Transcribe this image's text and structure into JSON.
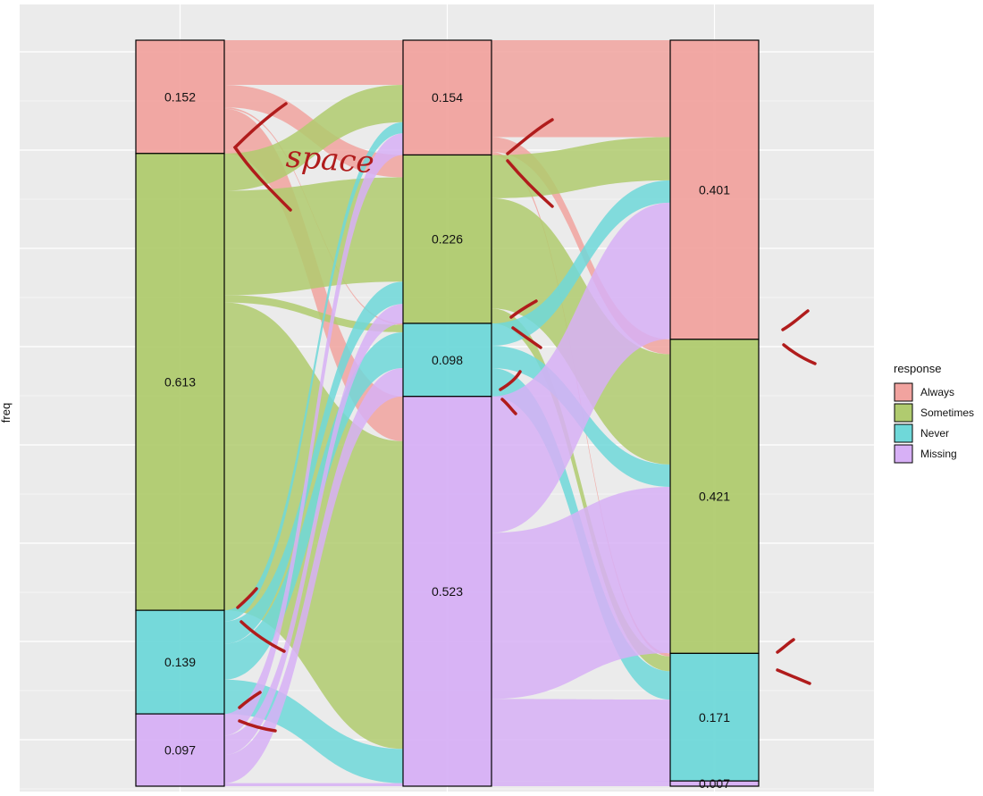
{
  "chart_data": {
    "type": "alluvial",
    "ylabel": "freq",
    "legend": {
      "title": "response",
      "placement": "right",
      "entries": [
        {
          "name": "Always",
          "color": "#F1A39F"
        },
        {
          "name": "Sometimes",
          "color": "#B0CB6F"
        },
        {
          "name": "Never",
          "color": "#6FD8D9"
        },
        {
          "name": "Missing",
          "color": "#D7B0F6"
        }
      ]
    },
    "category_order": [
      "Always",
      "Sometimes",
      "Never",
      "Missing"
    ],
    "axes": [
      {
        "strata": [
          {
            "category": "Always",
            "value": 0.152,
            "label": "0.152"
          },
          {
            "category": "Sometimes",
            "value": 0.613,
            "label": "0.613"
          },
          {
            "category": "Never",
            "value": 0.139,
            "label": "0.139"
          },
          {
            "category": "Missing",
            "value": 0.097,
            "label": "0.097"
          }
        ]
      },
      {
        "strata": [
          {
            "category": "Always",
            "value": 0.154,
            "label": "0.154"
          },
          {
            "category": "Sometimes",
            "value": 0.226,
            "label": "0.226"
          },
          {
            "category": "Never",
            "value": 0.098,
            "label": "0.098"
          },
          {
            "category": "Missing",
            "value": 0.523,
            "label": "0.523"
          }
        ]
      },
      {
        "strata": [
          {
            "category": "Always",
            "value": 0.401,
            "label": "0.401"
          },
          {
            "category": "Sometimes",
            "value": 0.421,
            "label": "0.421"
          },
          {
            "category": "Never",
            "value": 0.171,
            "label": "0.171"
          },
          {
            "category": "Missing",
            "value": 0.007,
            "label": "0.007"
          }
        ]
      }
    ],
    "flows": [
      [
        {
          "from": "Always",
          "to": "Always",
          "value": 0.06
        },
        {
          "from": "Always",
          "to": "Sometimes",
          "value": 0.03
        },
        {
          "from": "Always",
          "to": "Never",
          "value": 0.002
        },
        {
          "from": "Always",
          "to": "Missing",
          "value": 0.06
        },
        {
          "from": "Sometimes",
          "to": "Always",
          "value": 0.05
        },
        {
          "from": "Sometimes",
          "to": "Sometimes",
          "value": 0.14
        },
        {
          "from": "Sometimes",
          "to": "Never",
          "value": 0.01
        },
        {
          "from": "Sometimes",
          "to": "Missing",
          "value": 0.413
        },
        {
          "from": "Never",
          "to": "Always",
          "value": 0.015
        },
        {
          "from": "Never",
          "to": "Sometimes",
          "value": 0.03
        },
        {
          "from": "Never",
          "to": "Never",
          "value": 0.048
        },
        {
          "from": "Never",
          "to": "Missing",
          "value": 0.046
        },
        {
          "from": "Missing",
          "to": "Always",
          "value": 0.029
        },
        {
          "from": "Missing",
          "to": "Sometimes",
          "value": 0.026
        },
        {
          "from": "Missing",
          "to": "Never",
          "value": 0.038
        },
        {
          "from": "Missing",
          "to": "Missing",
          "value": 0.004
        }
      ],
      [
        {
          "from": "Always",
          "to": "Always",
          "value": 0.13
        },
        {
          "from": "Always",
          "to": "Sometimes",
          "value": 0.02
        },
        {
          "from": "Always",
          "to": "Never",
          "value": 0.004
        },
        {
          "from": "Sometimes",
          "to": "Always",
          "value": 0.058
        },
        {
          "from": "Sometimes",
          "to": "Sometimes",
          "value": 0.148
        },
        {
          "from": "Sometimes",
          "to": "Never",
          "value": 0.02
        },
        {
          "from": "Never",
          "to": "Always",
          "value": 0.03
        },
        {
          "from": "Never",
          "to": "Sometimes",
          "value": 0.03
        },
        {
          "from": "Never",
          "to": "Never",
          "value": 0.038
        },
        {
          "from": "Missing",
          "to": "Always",
          "value": 0.183
        },
        {
          "from": "Missing",
          "to": "Sometimes",
          "value": 0.223
        },
        {
          "from": "Missing",
          "to": "Never",
          "value": 0.11
        },
        {
          "from": "Missing",
          "to": "Missing",
          "value": 0.007
        }
      ]
    ]
  },
  "annotations": {
    "handwritten_text": "space",
    "marker_color": "#B01C1C"
  }
}
